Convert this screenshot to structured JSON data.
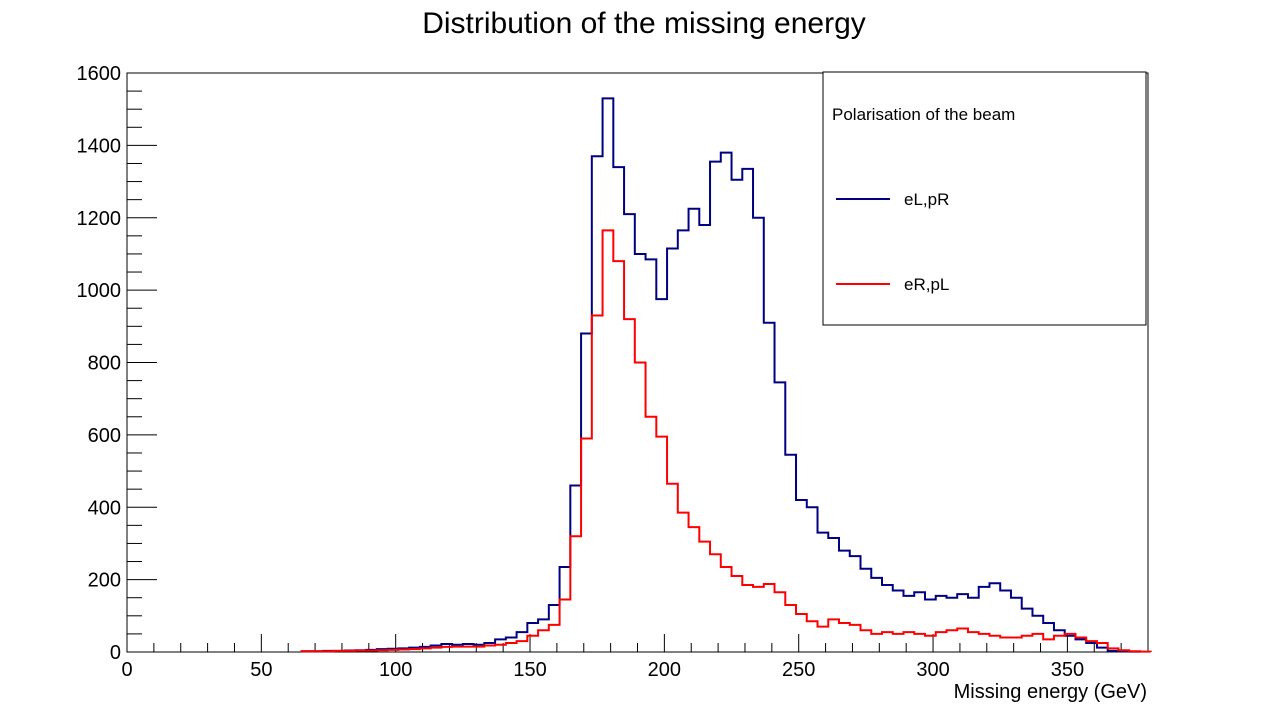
{
  "chart_data": {
    "type": "histogram",
    "title": "Distribution of the missing energy",
    "xlabel": "Missing energy (GeV)",
    "ylabel": "",
    "xlim": [
      0,
      380
    ],
    "ylim": [
      0,
      1600
    ],
    "x_ticks": [
      "0",
      "50",
      "100",
      "150",
      "200",
      "250",
      "300",
      "350"
    ],
    "y_ticks": [
      "0",
      "200",
      "400",
      "600",
      "800",
      "1000",
      "1200",
      "1400",
      "1600"
    ],
    "bin_edges_start": 65,
    "bin_width": 4,
    "legend": {
      "title": "Polarisation of the beam",
      "position": "top-right"
    },
    "series": [
      {
        "name": "eL,pR",
        "color": "#000080",
        "values": [
          2,
          2,
          3,
          3,
          4,
          5,
          6,
          8,
          9,
          10,
          12,
          14,
          18,
          22,
          20,
          22,
          20,
          25,
          35,
          40,
          55,
          80,
          90,
          130,
          235,
          460,
          880,
          1370,
          1530,
          1340,
          1210,
          1100,
          1085,
          975,
          1115,
          1165,
          1225,
          1180,
          1355,
          1380,
          1305,
          1335,
          1200,
          910,
          745,
          545,
          420,
          400,
          330,
          315,
          280,
          265,
          230,
          205,
          185,
          170,
          155,
          165,
          145,
          155,
          150,
          160,
          150,
          180,
          190,
          170,
          150,
          120,
          100,
          80,
          60,
          45,
          35,
          25,
          12,
          3,
          2,
          1
        ]
      },
      {
        "name": "eR,pL",
        "color": "#ff0000",
        "values": [
          2,
          2,
          2,
          3,
          3,
          4,
          4,
          5,
          6,
          7,
          8,
          10,
          12,
          14,
          15,
          15,
          15,
          18,
          20,
          25,
          30,
          45,
          60,
          75,
          145,
          320,
          590,
          930,
          1165,
          1080,
          920,
          800,
          650,
          595,
          465,
          385,
          345,
          305,
          270,
          235,
          210,
          185,
          180,
          188,
          165,
          130,
          105,
          85,
          70,
          90,
          80,
          75,
          60,
          50,
          55,
          50,
          55,
          50,
          45,
          55,
          60,
          65,
          55,
          50,
          45,
          40,
          40,
          45,
          50,
          35,
          45,
          50,
          40,
          30,
          25,
          10,
          5,
          2,
          1
        ]
      }
    ]
  },
  "legend_items": [
    {
      "label": "eL,pR",
      "color": "#000080"
    },
    {
      "label": "eR,pL",
      "color": "#ff0000"
    }
  ]
}
